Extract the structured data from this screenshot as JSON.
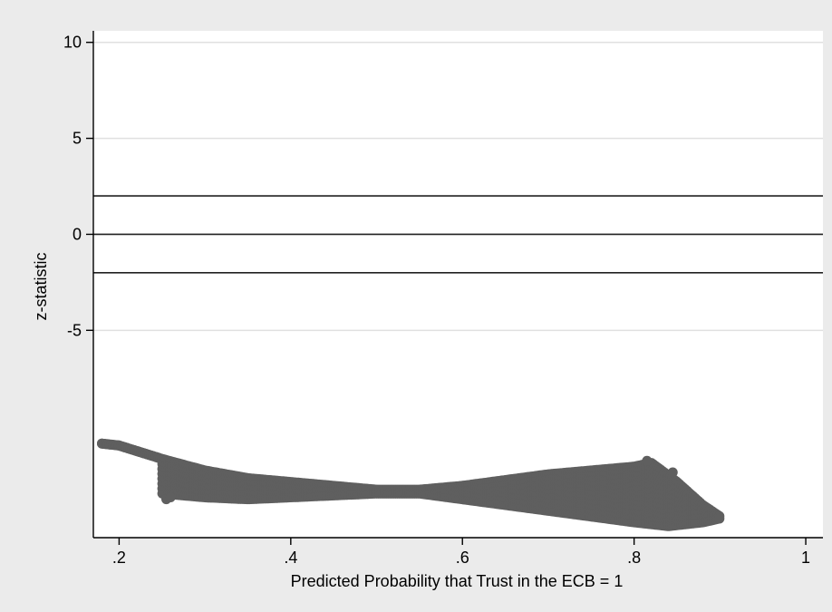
{
  "chart_data": {
    "type": "scatter",
    "title": "",
    "xlabel": "Predicted Probability that Trust in the ECB = 1",
    "ylabel": "z-statistic",
    "xlim": [
      0.17,
      1.02
    ],
    "ylim": [
      -15.8,
      10.6
    ],
    "x_ticks": [
      0.2,
      0.4,
      0.6,
      0.8,
      1.0
    ],
    "x_tick_labels": [
      ".2",
      ".4",
      ".6",
      ".8",
      "1"
    ],
    "y_ticks": [
      10,
      5,
      0,
      -5
    ],
    "y_tick_labels": [
      "10",
      "5",
      "0",
      "-5"
    ],
    "grid": "horizontal gridlines at y ticks",
    "legend": "none",
    "reference_lines_y": [
      2,
      0,
      -2
    ],
    "colors": {
      "background": "#ebebeb",
      "plot_area": "#ffffff",
      "markers": "#5f5f5f",
      "grid": "#e0e0e0",
      "reference_lines": "#222222"
    },
    "series": [
      {
        "marker": "filled circle",
        "upper_band": [
          [
            0.18,
            -10.9
          ],
          [
            0.2,
            -11.0
          ],
          [
            0.25,
            -11.7
          ],
          [
            0.3,
            -12.3
          ],
          [
            0.35,
            -12.7
          ],
          [
            0.4,
            -12.9
          ],
          [
            0.45,
            -13.1
          ],
          [
            0.5,
            -13.3
          ],
          [
            0.55,
            -13.3
          ],
          [
            0.6,
            -13.1
          ],
          [
            0.65,
            -12.8
          ],
          [
            0.7,
            -12.5
          ],
          [
            0.75,
            -12.3
          ],
          [
            0.8,
            -12.1
          ],
          [
            0.82,
            -11.9
          ],
          [
            0.85,
            -12.9
          ],
          [
            0.88,
            -14.1
          ],
          [
            0.9,
            -14.7
          ]
        ],
        "lower_band": [
          [
            0.25,
            -13.5
          ],
          [
            0.3,
            -13.7
          ],
          [
            0.35,
            -13.8
          ],
          [
            0.4,
            -13.7
          ],
          [
            0.45,
            -13.6
          ],
          [
            0.5,
            -13.5
          ],
          [
            0.55,
            -13.5
          ],
          [
            0.6,
            -13.8
          ],
          [
            0.65,
            -14.1
          ],
          [
            0.7,
            -14.4
          ],
          [
            0.75,
            -14.7
          ],
          [
            0.8,
            -15.0
          ],
          [
            0.82,
            -15.1
          ],
          [
            0.84,
            -15.2
          ],
          [
            0.86,
            -15.1
          ],
          [
            0.88,
            -15.0
          ],
          [
            0.9,
            -14.8
          ]
        ],
        "outliers": [
          [
            0.815,
            -11.8
          ],
          [
            0.845,
            -12.4
          ],
          [
            0.255,
            -13.8
          ],
          [
            0.26,
            -13.7
          ]
        ]
      }
    ]
  }
}
